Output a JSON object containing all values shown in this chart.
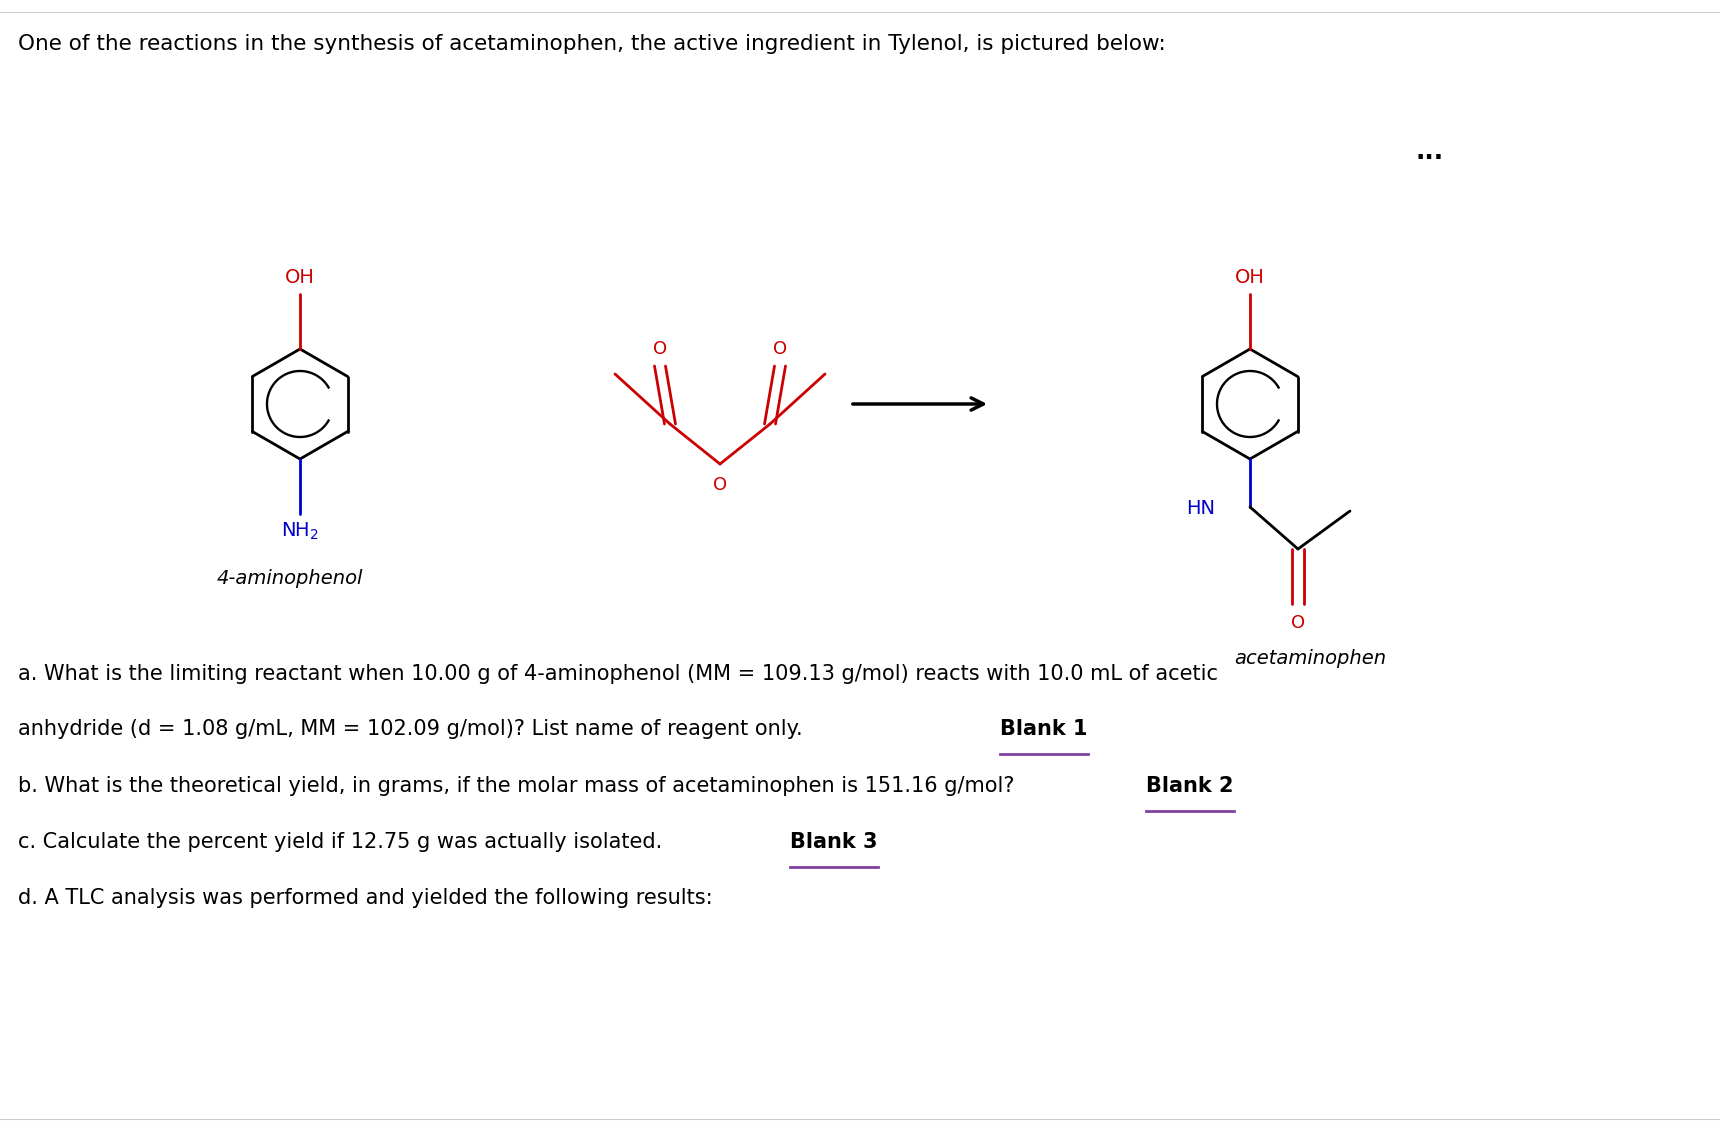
{
  "background_color": "#ffffff",
  "title_text": "One of the reactions in the synthesis of acetaminophen, the active ingredient in Tylenol, is pictured below:",
  "text_color": "#000000",
  "red_color": "#cc0000",
  "blue_color": "#0000cc",
  "purple_color": "#8040a0",
  "blank1_label": "Blank 1",
  "blank2_label": "Blank 2",
  "blank3_label": "Blank 3",
  "dots_text": "...",
  "label_4aminophenol": "4-aminophenol",
  "label_acetaminophen": "acetaminophen",
  "q_fontsize": 15.0,
  "line_a1": "a. What is the limiting reactant when 10.00 g of 4-aminophenol (MM = 109.13 g/mol) reacts with 10.0 mL of acetic",
  "line_a2_before": "anhydride (d = 1.08 g/mL, MM = 102.09 g/mol)? List name of reagent only. ",
  "line_b_before": "b. What is the theoretical yield, in grams, if the molar mass of acetaminophen is 151.16 g/mol? ",
  "line_c_before": "c. Calculate the percent yield if 12.75 g was actually isolated. ",
  "line_d": "d. A TLC analysis was performed and yielded the following results:"
}
